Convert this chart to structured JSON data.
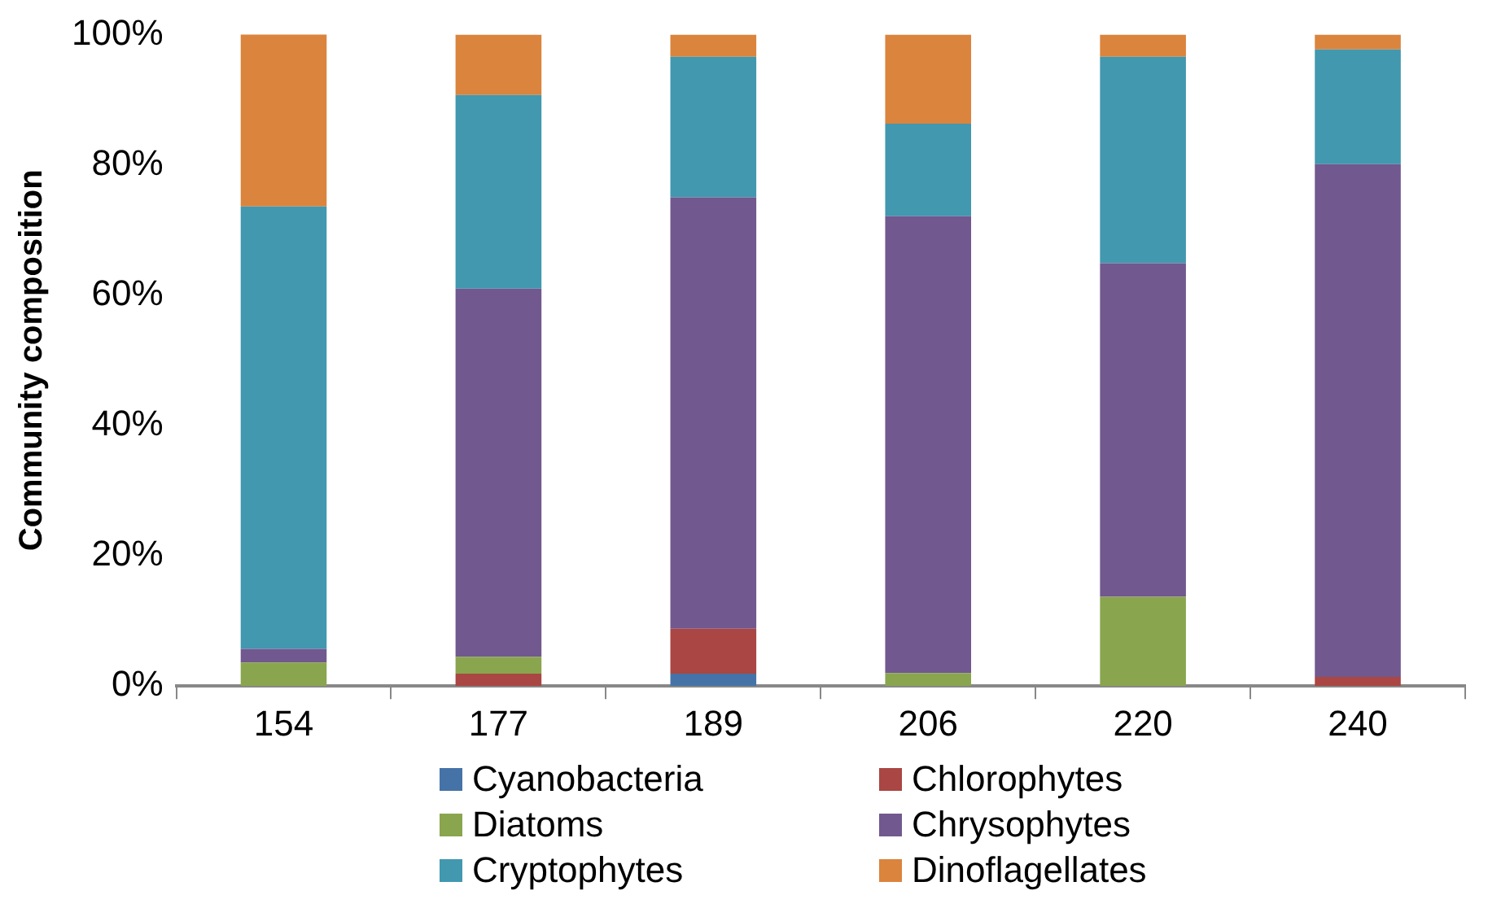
{
  "chart_data": {
    "type": "bar",
    "stacked": true,
    "ylabel": "Community composition",
    "categories": [
      "154",
      "177",
      "189",
      "206",
      "220",
      "240"
    ],
    "series": [
      {
        "name": "Cyanobacteria",
        "color": "#4573a7",
        "values": [
          0,
          0,
          1.9,
          0,
          0,
          0
        ]
      },
      {
        "name": "Chlorophytes",
        "color": "#aa4643",
        "values": [
          0,
          1.9,
          6.9,
          0,
          0,
          1.4
        ]
      },
      {
        "name": "Diatoms",
        "color": "#89a54e",
        "values": [
          3.6,
          2.6,
          0,
          2.0,
          13.7,
          0
        ]
      },
      {
        "name": "Chrysophytes",
        "color": "#71588f",
        "values": [
          2.1,
          56.5,
          66.2,
          70.1,
          51.2,
          78.7
        ]
      },
      {
        "name": "Cryptophytes",
        "color": "#4198af",
        "values": [
          67.9,
          29.7,
          21.6,
          14.2,
          31.7,
          17.6
        ]
      },
      {
        "name": "Dinoflagellates",
        "color": "#db843d",
        "values": [
          26.5,
          9.3,
          3.4,
          13.7,
          3.4,
          2.3
        ]
      }
    ],
    "ylim": [
      0,
      100
    ],
    "yticks": [
      {
        "value": 0,
        "label": "0%"
      },
      {
        "value": 20,
        "label": "20%"
      },
      {
        "value": 40,
        "label": "40%"
      },
      {
        "value": 60,
        "label": "60%"
      },
      {
        "value": 80,
        "label": "80%"
      },
      {
        "value": 100,
        "label": "100%"
      }
    ],
    "grid": false,
    "legend": "bottom"
  }
}
